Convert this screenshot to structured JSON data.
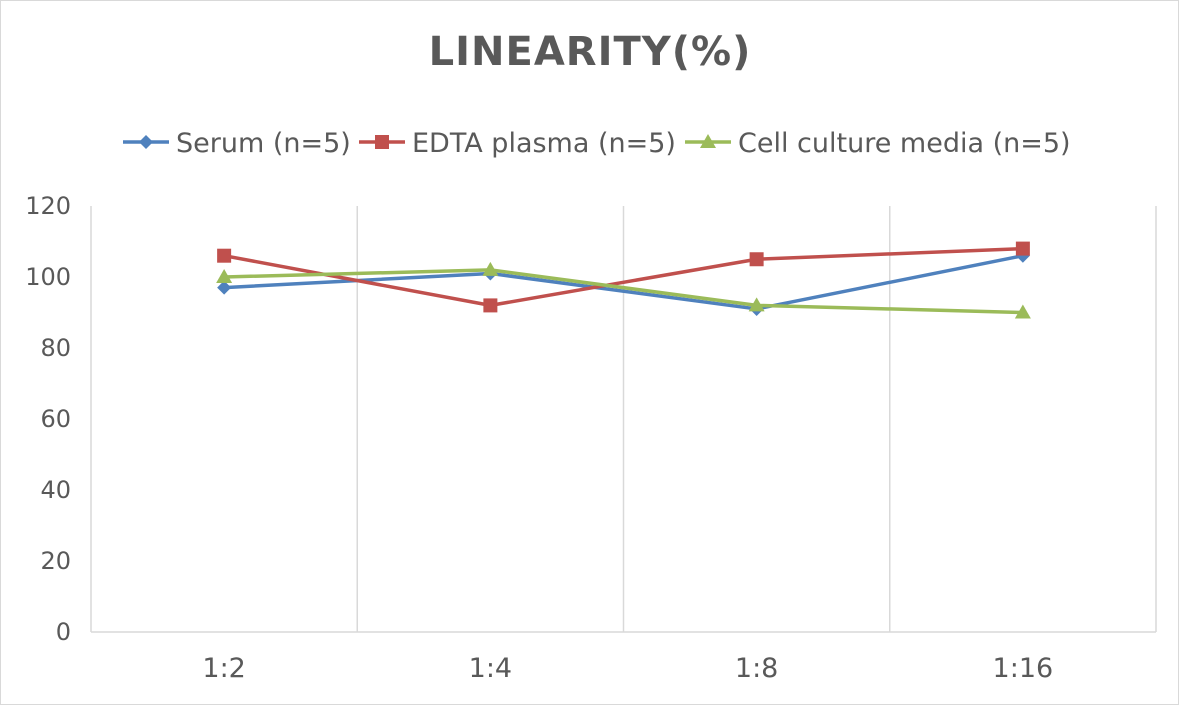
{
  "chart_data": {
    "type": "line",
    "title": "LINEARITY(%)",
    "categories": [
      "1:2",
      "1:4",
      "1:8",
      "1:16"
    ],
    "ylim": [
      0,
      120
    ],
    "yticks": [
      0,
      20,
      40,
      60,
      80,
      100,
      120
    ],
    "grid": "vertical",
    "legend_position": "top",
    "series": [
      {
        "name": "Serum (n=5)",
        "values": [
          97,
          101,
          91,
          106
        ],
        "color": "#4f81bd",
        "marker": "diamond"
      },
      {
        "name": "EDTA plasma (n=5)",
        "values": [
          106,
          92,
          105,
          108
        ],
        "color": "#c0504d",
        "marker": "square"
      },
      {
        "name": "Cell culture media (n=5)",
        "values": [
          100,
          102,
          92,
          90
        ],
        "color": "#9bbb59",
        "marker": "triangle"
      }
    ]
  }
}
